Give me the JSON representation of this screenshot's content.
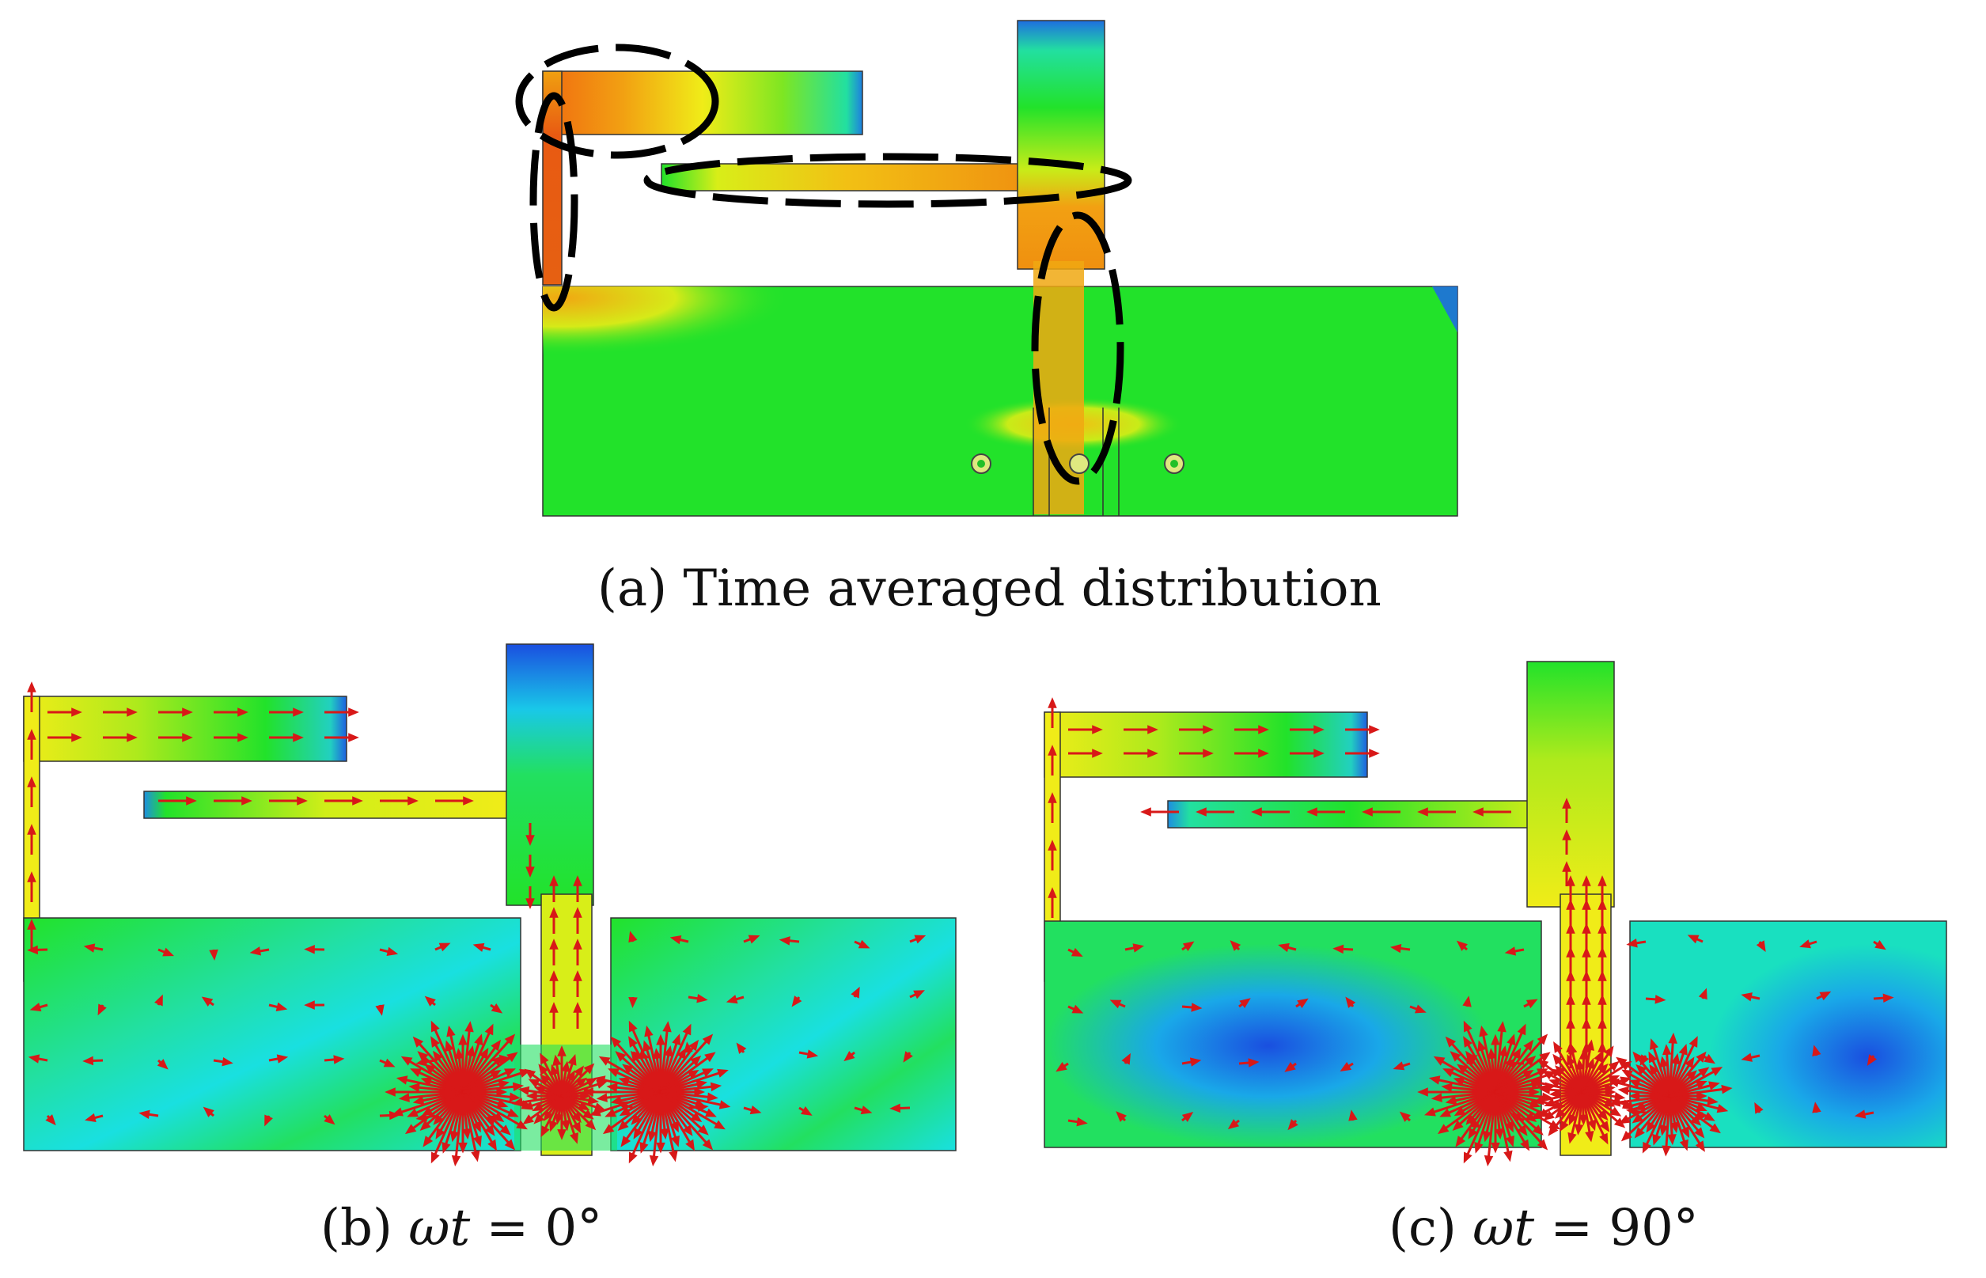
{
  "captions": {
    "a": "(a) Time averaged distribution",
    "b_prefix": "(b) ",
    "b_symbol": "ωt",
    "b_suffix": " = 0°",
    "c_prefix": "(c) ",
    "c_symbol": "ωt",
    "c_suffix": " = 90°"
  },
  "colors": {
    "field_low": "#1a4fe0",
    "field_mid_low": "#19e0e0",
    "field_mid": "#22e22a",
    "field_mid_high": "#f2f018",
    "field_high": "#f09010",
    "field_peak": "#e65a10",
    "vector_arrow": "#d81818",
    "highlight_ellipse": "#000000",
    "outline": "#333333"
  },
  "icons": [
    "dashed-ellipse-marker",
    "current-vector-arrow",
    "via-circle"
  ]
}
